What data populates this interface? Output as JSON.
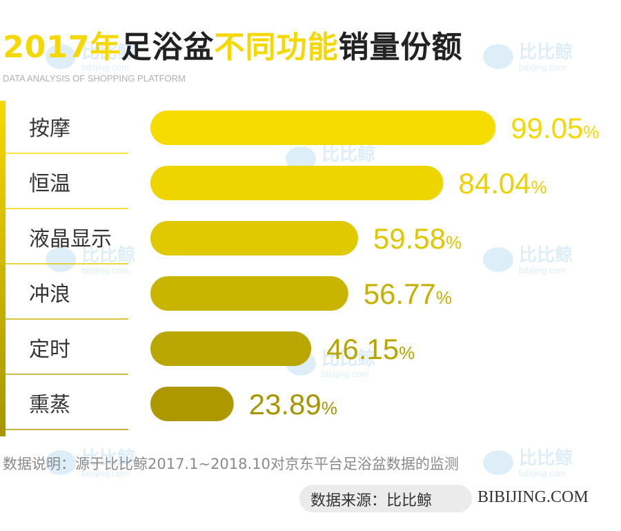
{
  "title": {
    "part1": "2017年",
    "part2": "足浴盆",
    "part3": "不同功能",
    "part4": "销量份额"
  },
  "subtitle": "DATA ANALYSIS OF SHOPPING PLATFORM",
  "note": "数据说明：源于比比鲸2017.1~2018.10对京东平台足浴盆数据的监测",
  "source": {
    "label": "数据来源：比比鲸",
    "site": "BIBIJING.COM"
  },
  "watermark": {
    "cn": "比比鲸",
    "en": "bibijing.com"
  },
  "colors": {
    "highlight": "#f5d800",
    "bar_colors": [
      "#f7dc00",
      "#efd500",
      "#e0c900",
      "#c9b400",
      "#baa600",
      "#ad9800"
    ],
    "label_colors": [
      "#f5d800",
      "#ecd100",
      "#dfc700",
      "#c4b000",
      "#b8a500",
      "#a79500"
    ],
    "side_bar_top": "#f5d800",
    "side_bar_bottom": "#a79500"
  },
  "chart_data": {
    "type": "bar",
    "orientation": "horizontal",
    "categories": [
      "按摩",
      "恒温",
      "液晶显示",
      "冲浪",
      "定时",
      "熏蒸"
    ],
    "values": [
      99.05,
      84.04,
      59.58,
      56.77,
      46.15,
      23.89
    ],
    "value_labels": [
      "99.05",
      "84.04",
      "59.58",
      "56.77",
      "46.15",
      "23.89"
    ],
    "unit": "%",
    "xlim": [
      0,
      100
    ],
    "grid": false
  }
}
